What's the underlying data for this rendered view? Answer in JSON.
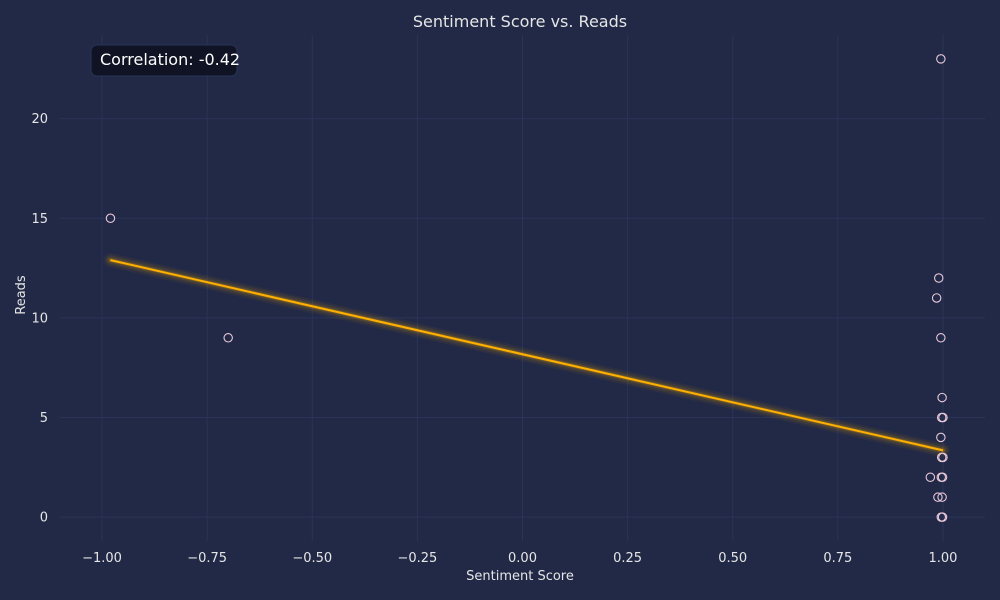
{
  "chart_data": {
    "type": "scatter",
    "title": "Sentiment Score vs. Reads",
    "xlabel": "Sentiment Score",
    "ylabel": "Reads",
    "xlim": [
      -1.1,
      1.1
    ],
    "ylim": [
      -1.2,
      24.2
    ],
    "xticks": [
      -1.0,
      -0.75,
      -0.5,
      -0.25,
      0.0,
      0.25,
      0.5,
      0.75,
      1.0
    ],
    "xtick_labels": [
      "−1.00",
      "−0.75",
      "−0.50",
      "−0.25",
      "0.00",
      "0.25",
      "0.50",
      "0.75",
      "1.00"
    ],
    "yticks": [
      0,
      5,
      10,
      15,
      20
    ],
    "ytick_labels": [
      "0",
      "5",
      "10",
      "15",
      "20"
    ],
    "grid": true,
    "annotation": "Correlation: -0.42",
    "colors": {
      "background": "#212946",
      "grid": "#2A3459",
      "point": "#e9c8d8",
      "trend": "#ffb000"
    },
    "points": [
      {
        "x": -0.98,
        "y": 15
      },
      {
        "x": -0.7,
        "y": 9
      },
      {
        "x": 0.995,
        "y": 23
      },
      {
        "x": 0.99,
        "y": 12
      },
      {
        "x": 0.985,
        "y": 11
      },
      {
        "x": 0.995,
        "y": 9
      },
      {
        "x": 0.998,
        "y": 6
      },
      {
        "x": 0.997,
        "y": 5
      },
      {
        "x": 1.0,
        "y": 5
      },
      {
        "x": 0.995,
        "y": 4
      },
      {
        "x": 0.997,
        "y": 3
      },
      {
        "x": 1.0,
        "y": 3
      },
      {
        "x": 0.996,
        "y": 2
      },
      {
        "x": 0.999,
        "y": 2
      },
      {
        "x": 0.97,
        "y": 2
      },
      {
        "x": 0.988,
        "y": 1
      },
      {
        "x": 0.998,
        "y": 1
      },
      {
        "x": 0.996,
        "y": 0
      },
      {
        "x": 0.999,
        "y": 0
      }
    ],
    "trendline": {
      "x": [
        -0.98,
        1.0
      ],
      "y": [
        12.9,
        3.35
      ]
    }
  }
}
